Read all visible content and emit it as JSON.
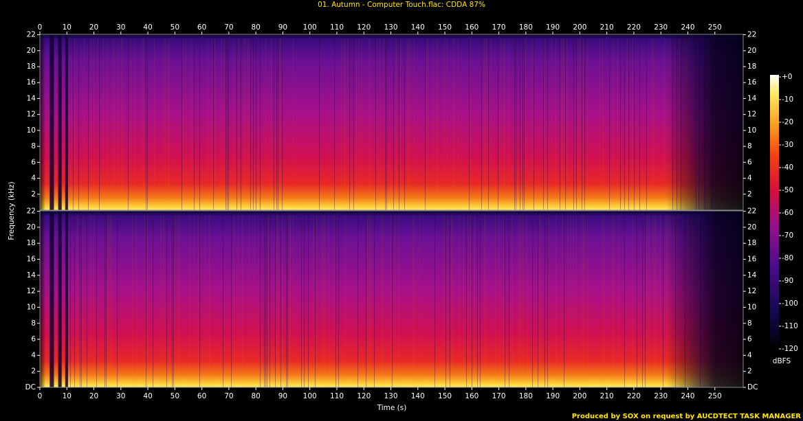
{
  "chart_data": {
    "type": "spectrogram",
    "title": "01. Autumn - Computer Touch.flac: CDDA 87%",
    "x_label": "Time (s)",
    "y_label": "Frequency (kHz)",
    "colorbar_label": "dBFS",
    "footer": "Produced by SOX on request by AUCDTECT TASK MANAGER",
    "xlim": [
      0,
      260.5
    ],
    "xticks": [
      0,
      10,
      20,
      30,
      40,
      50,
      60,
      70,
      80,
      90,
      100,
      110,
      120,
      130,
      140,
      150,
      160,
      170,
      180,
      190,
      200,
      210,
      220,
      230,
      240,
      250
    ],
    "channels": [
      {
        "ylim": [
          0,
          22.05
        ],
        "yticks": [
          2,
          4,
          6,
          8,
          10,
          12,
          14,
          16,
          18,
          20,
          22
        ]
      },
      {
        "ylim": [
          0,
          22.05
        ],
        "yticks": [
          {
            "value": 0,
            "label": "DC"
          },
          2,
          4,
          6,
          8,
          10,
          12,
          14,
          16,
          18,
          20,
          22
        ]
      }
    ],
    "colorbar": {
      "lim": [
        -120,
        0
      ],
      "ticks": [
        {
          "value": 0,
          "label": "+0"
        },
        -10,
        -20,
        -30,
        -40,
        -50,
        -60,
        -70,
        -80,
        -90,
        -100,
        -110,
        -120
      ]
    }
  }
}
